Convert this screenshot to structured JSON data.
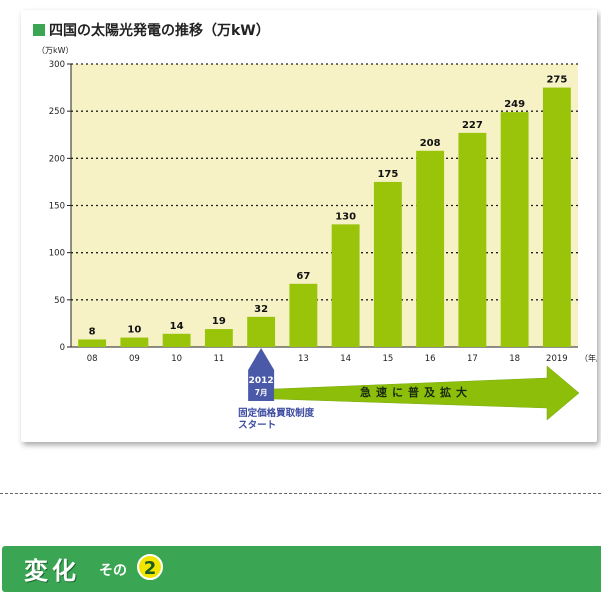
{
  "title": "四国の太陽光発電の推移（万kW）",
  "colors": {
    "accent": "#3aa552",
    "bar": "#99c40a",
    "plot_bg": "#f6f2c6",
    "marker": "#4a5aa8"
  },
  "chart_data": {
    "type": "bar",
    "title": "四国の太陽光発電の推移（万kW）",
    "ylabel": "（万kW）",
    "xlabel": "（年度）",
    "categories": [
      "08",
      "09",
      "10",
      "11",
      "12",
      "13",
      "14",
      "15",
      "16",
      "17",
      "18",
      "2019"
    ],
    "values": [
      8,
      10,
      14,
      19,
      32,
      67,
      130,
      175,
      208,
      227,
      249,
      275
    ],
    "ylim": [
      0,
      300
    ],
    "yticks": [
      0,
      50,
      100,
      150,
      200,
      250,
      300
    ],
    "grid": true
  },
  "annotation": {
    "year": "2012",
    "month": "7月",
    "label_line1": "固定価格買取制度",
    "label_line2": "スタート",
    "arrow_text": "急速に普及拡大"
  },
  "banner": {
    "main": "変化",
    "sono": "その",
    "number": "2"
  }
}
